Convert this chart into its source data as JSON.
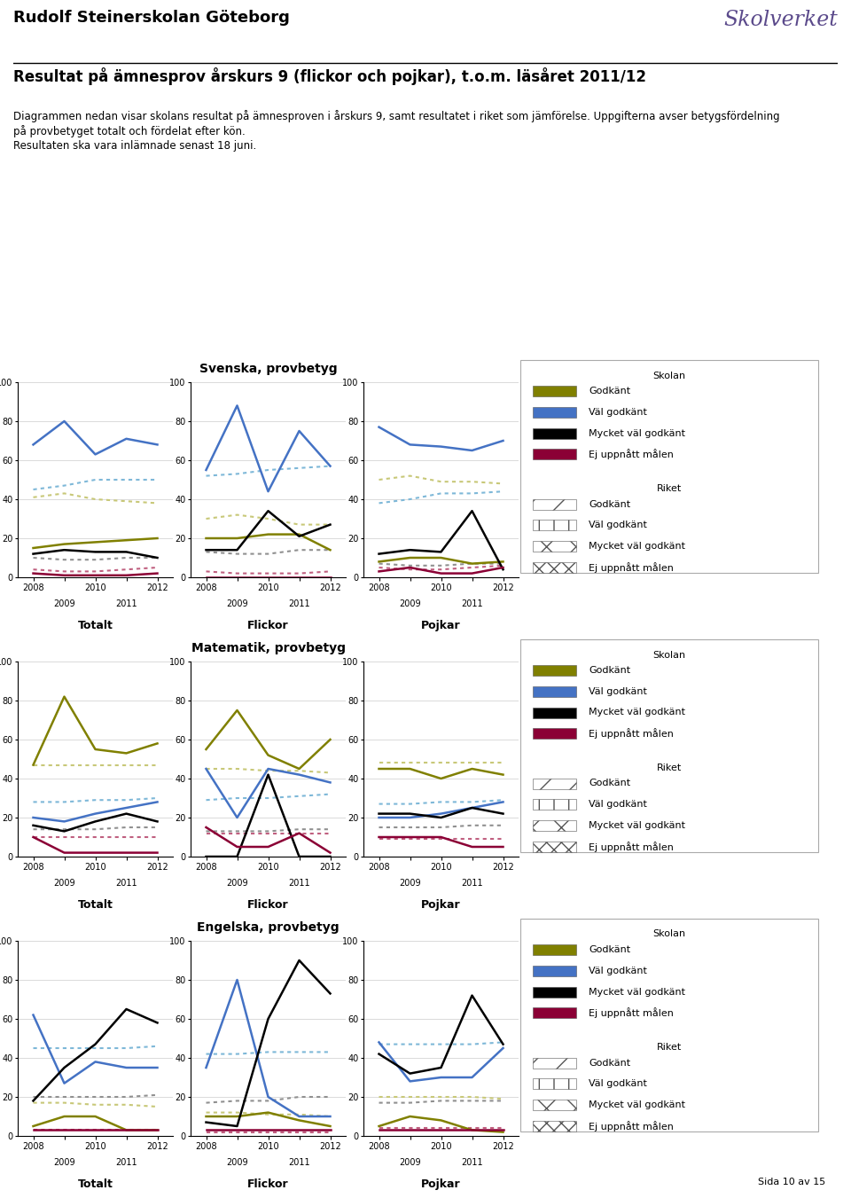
{
  "title_school": "Rudolf Steinerskolan Göteborg",
  "title_main": "Resultat på ämnesprov årskurs 9 (flickor och pojkar), t.o.m. läsåret 2011/12",
  "subtitle1": "Diagrammen nedan visar skolans resultat på ämnesproven i årskurs 9, samt resultatet i riket som jämförelse. Uppgifterna avser betygsfördelning",
  "subtitle2": "på provbetyget totalt och fördelat efter kön.",
  "subtitle3": "Resultaten ska vara inlämnade senast 18 juni.",
  "x_values": [
    2008,
    2009,
    2010,
    2011,
    2012
  ],
  "sections": [
    {
      "title": "Svenska, provbetyg",
      "charts": [
        {
          "label": "Totalt",
          "skolan": {
            "godkant": [
              15,
              17,
              18,
              19,
              20
            ],
            "val_godkant": [
              68,
              80,
              63,
              71,
              68
            ],
            "mycket_val": [
              12,
              14,
              13,
              13,
              10
            ],
            "ej_uppnatt": [
              2,
              1,
              1,
              1,
              2
            ]
          },
          "riket": {
            "godkant": [
              41,
              43,
              40,
              39,
              38
            ],
            "val_godkant": [
              45,
              47,
              50,
              50,
              50
            ],
            "mycket_val": [
              10,
              9,
              9,
              10,
              10
            ],
            "ej_uppnatt": [
              4,
              3,
              3,
              4,
              5
            ]
          }
        },
        {
          "label": "Flickor",
          "skolan": {
            "godkant": [
              20,
              20,
              22,
              22,
              14
            ],
            "val_godkant": [
              55,
              88,
              44,
              75,
              57
            ],
            "mycket_val": [
              14,
              14,
              34,
              21,
              27
            ],
            "ej_uppnatt": [
              0,
              0,
              0,
              0,
              0
            ]
          },
          "riket": {
            "godkant": [
              30,
              32,
              30,
              27,
              27
            ],
            "val_godkant": [
              52,
              53,
              55,
              56,
              57
            ],
            "mycket_val": [
              13,
              12,
              12,
              14,
              14
            ],
            "ej_uppnatt": [
              3,
              2,
              2,
              2,
              3
            ]
          }
        },
        {
          "label": "Pojkar",
          "skolan": {
            "godkant": [
              8,
              10,
              10,
              7,
              8
            ],
            "val_godkant": [
              77,
              68,
              67,
              65,
              70
            ],
            "mycket_val": [
              12,
              14,
              13,
              34,
              4
            ],
            "ej_uppnatt": [
              3,
              5,
              2,
              2,
              5
            ]
          },
          "riket": {
            "godkant": [
              50,
              52,
              49,
              49,
              48
            ],
            "val_godkant": [
              38,
              40,
              43,
              43,
              44
            ],
            "mycket_val": [
              7,
              6,
              6,
              7,
              7
            ],
            "ej_uppnatt": [
              5,
              4,
              4,
              5,
              6
            ]
          }
        }
      ]
    },
    {
      "title": "Matematik, provbetyg",
      "charts": [
        {
          "label": "Totalt",
          "skolan": {
            "godkant": [
              47,
              82,
              55,
              53,
              58
            ],
            "val_godkant": [
              20,
              18,
              22,
              25,
              28
            ],
            "mycket_val": [
              16,
              13,
              18,
              22,
              18
            ],
            "ej_uppnatt": [
              10,
              2,
              2,
              2,
              2
            ]
          },
          "riket": {
            "godkant": [
              47,
              47,
              47,
              47,
              47
            ],
            "val_godkant": [
              28,
              28,
              29,
              29,
              30
            ],
            "mycket_val": [
              14,
              14,
              14,
              15,
              15
            ],
            "ej_uppnatt": [
              10,
              10,
              10,
              10,
              10
            ]
          }
        },
        {
          "label": "Flickor",
          "skolan": {
            "godkant": [
              55,
              75,
              52,
              45,
              60
            ],
            "val_godkant": [
              45,
              20,
              45,
              42,
              38
            ],
            "mycket_val": [
              0,
              0,
              42,
              0,
              0
            ],
            "ej_uppnatt": [
              15,
              5,
              5,
              12,
              2
            ]
          },
          "riket": {
            "godkant": [
              45,
              45,
              44,
              44,
              43
            ],
            "val_godkant": [
              29,
              30,
              30,
              31,
              32
            ],
            "mycket_val": [
              13,
              13,
              13,
              14,
              14
            ],
            "ej_uppnatt": [
              12,
              12,
              12,
              12,
              12
            ]
          }
        },
        {
          "label": "Pojkar",
          "skolan": {
            "godkant": [
              45,
              45,
              40,
              45,
              42
            ],
            "val_godkant": [
              20,
              20,
              22,
              25,
              28
            ],
            "mycket_val": [
              22,
              22,
              20,
              25,
              22
            ],
            "ej_uppnatt": [
              10,
              10,
              10,
              5,
              5
            ]
          },
          "riket": {
            "godkant": [
              48,
              48,
              48,
              48,
              48
            ],
            "val_godkant": [
              27,
              27,
              28,
              28,
              29
            ],
            "mycket_val": [
              15,
              15,
              15,
              16,
              16
            ],
            "ej_uppnatt": [
              9,
              9,
              9,
              9,
              9
            ]
          }
        }
      ]
    },
    {
      "title": "Engelska, provbetyg",
      "charts": [
        {
          "label": "Totalt",
          "skolan": {
            "godkant": [
              5,
              10,
              10,
              3,
              3
            ],
            "val_godkant": [
              62,
              27,
              38,
              35,
              35
            ],
            "mycket_val": [
              18,
              35,
              47,
              65,
              58
            ],
            "ej_uppnatt": [
              3,
              3,
              3,
              3,
              3
            ]
          },
          "riket": {
            "godkant": [
              17,
              17,
              16,
              16,
              15
            ],
            "val_godkant": [
              45,
              45,
              45,
              45,
              46
            ],
            "mycket_val": [
              20,
              20,
              20,
              20,
              21
            ],
            "ej_uppnatt": [
              3,
              3,
              3,
              3,
              3
            ]
          }
        },
        {
          "label": "Flickor",
          "skolan": {
            "godkant": [
              10,
              10,
              12,
              8,
              5
            ],
            "val_godkant": [
              35,
              80,
              20,
              10,
              10
            ],
            "mycket_val": [
              7,
              5,
              60,
              90,
              73
            ],
            "ej_uppnatt": [
              3,
              3,
              3,
              3,
              3
            ]
          },
          "riket": {
            "godkant": [
              12,
              12,
              11,
              11,
              10
            ],
            "val_godkant": [
              42,
              42,
              43,
              43,
              43
            ],
            "mycket_val": [
              17,
              18,
              18,
              20,
              20
            ],
            "ej_uppnatt": [
              2,
              2,
              2,
              2,
              2
            ]
          }
        },
        {
          "label": "Pojkar",
          "skolan": {
            "godkant": [
              5,
              10,
              8,
              3,
              2
            ],
            "val_godkant": [
              48,
              28,
              30,
              30,
              45
            ],
            "mycket_val": [
              42,
              32,
              35,
              72,
              47
            ],
            "ej_uppnatt": [
              3,
              3,
              3,
              3,
              3
            ]
          },
          "riket": {
            "godkant": [
              20,
              20,
              20,
              20,
              19
            ],
            "val_godkant": [
              47,
              47,
              47,
              47,
              48
            ],
            "mycket_val": [
              17,
              17,
              18,
              18,
              18
            ],
            "ej_uppnatt": [
              4,
              4,
              4,
              4,
              4
            ]
          }
        }
      ]
    }
  ],
  "colors": {
    "skolan_godkant": "#808000",
    "skolan_val_godkant": "#4472C4",
    "skolan_mycket_val": "#000000",
    "skolan_ej_uppnatt": "#8B0035",
    "riket_godkant": "#C8C878",
    "riket_val_godkant": "#7EB8D8",
    "riket_mycket_val": "#909090",
    "riket_ej_uppnatt": "#C06080"
  },
  "background_color": "#FFFFFF",
  "page_note": "Sida 10 av 15"
}
